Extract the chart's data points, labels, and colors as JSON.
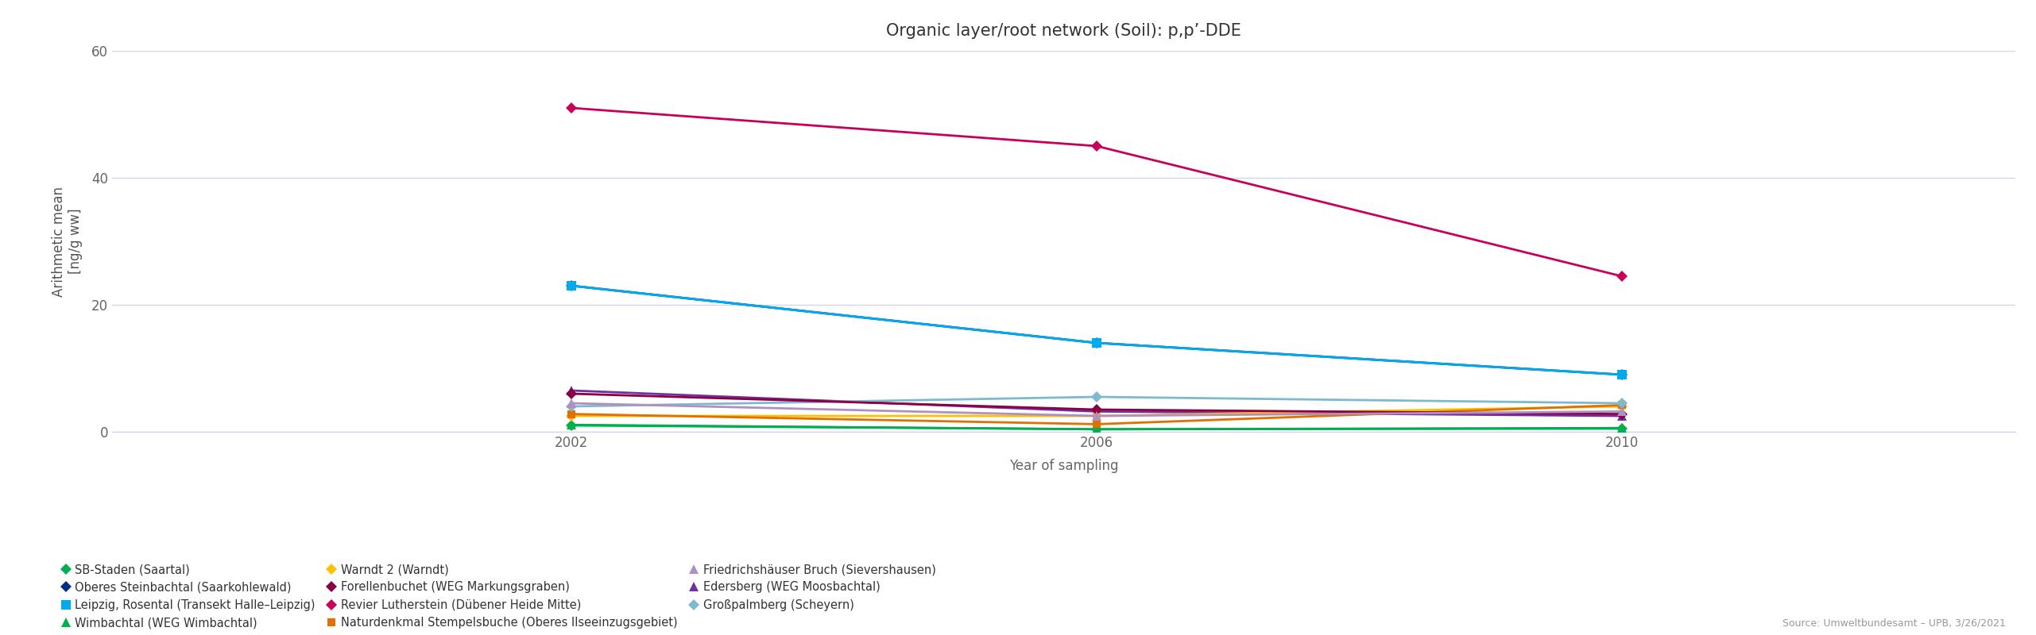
{
  "title": "Organic layer/root network (Soil): p,p’-DDE",
  "xlabel": "Year of sampling",
  "ylabel": "Arithmetic mean\n[ng/g ww]",
  "years": [
    2002,
    2006,
    2010
  ],
  "source": "Source: Umweltbundesamt – UPB, 3/26/2021",
  "series": [
    {
      "name": "SB-Staden (Saartal)",
      "color": "#00b050",
      "marker": "D",
      "markersize": 7,
      "values": [
        1.0,
        0.4,
        0.5
      ]
    },
    {
      "name": "Wimbachtal (WEG Wimbachtal)",
      "color": "#00b050",
      "marker": "^",
      "markersize": 8,
      "values": [
        1.1,
        0.4,
        0.6
      ]
    },
    {
      "name": "Revier Lutherstein (Dübener Heide Mitte)",
      "color": "#c8005a",
      "marker": "D",
      "markersize": 7,
      "values": [
        51.0,
        45.0,
        24.5
      ]
    },
    {
      "name": "Edersberg (WEG Moosbachtal)",
      "color": "#7030a0",
      "marker": "^",
      "markersize": 8,
      "values": [
        6.5,
        3.2,
        2.5
      ]
    },
    {
      "name": "Oberes Steinbachtal (Saarkohlewald)",
      "color": "#003087",
      "marker": "D",
      "markersize": 7,
      "values": [
        23.0,
        14.0,
        9.0
      ]
    },
    {
      "name": "Warndt 2 (Warndt)",
      "color": "#ffc000",
      "marker": "D",
      "markersize": 7,
      "values": [
        2.5,
        2.5,
        4.0
      ]
    },
    {
      "name": "Naturdenkmal Stempelsbuche (Oberes Ilseeinzugsgebiet)",
      "color": "#e07000",
      "marker": "s",
      "markersize": 7,
      "values": [
        2.8,
        1.2,
        4.2
      ]
    },
    {
      "name": "Großpalmberg (Scheyern)",
      "color": "#7fb9d0",
      "marker": "D",
      "markersize": 7,
      "values": [
        4.0,
        5.5,
        4.5
      ]
    },
    {
      "name": "Leipzig, Rosental (Transekt Halle–Leipzig)",
      "color": "#00aaee",
      "marker": "s",
      "markersize": 8,
      "values": [
        23.0,
        14.0,
        9.0
      ]
    },
    {
      "name": "Forellenbuchet (WEG Markungsgraben)",
      "color": "#8b0045",
      "marker": "D",
      "markersize": 7,
      "values": [
        6.0,
        3.5,
        2.8
      ]
    },
    {
      "name": "Friedrichshäuser Bruch (Sievershausen)",
      "color": "#b090c0",
      "marker": "^",
      "markersize": 8,
      "values": [
        4.5,
        2.5,
        3.2
      ]
    }
  ],
  "ylim": [
    0,
    60
  ],
  "yticks": [
    0,
    20,
    40,
    60
  ],
  "xlim": [
    1998.5,
    2013
  ],
  "background_color": "#ffffff",
  "grid_color": "#d0d8e8",
  "legend_order": [
    "SB-Staden (Saartal)",
    "Oberes Steinbachtal (Saarkohlewald)",
    "Leipzig, Rosental (Transekt Halle–Leipzig)",
    "Wimbachtal (WEG Wimbachtal)",
    "Warndt 2 (Warndt)",
    "Forellenbuchet (WEG Markungsgraben)",
    "Revier Lutherstein (Dübener Heide Mitte)",
    "Naturdenkmal Stempelsbuche (Oberes Ilseeinzugsgebiet)",
    "Friedrichshäuser Bruch (Sievershausen)",
    "Edersberg (WEG Moosbachtal)",
    "Großpalmberg (Scheyern)"
  ]
}
